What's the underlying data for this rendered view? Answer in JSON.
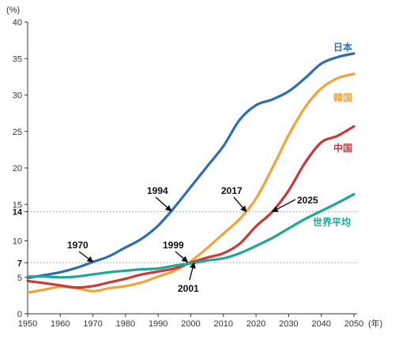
{
  "chart_data": {
    "type": "line",
    "y_unit_label": "(%)",
    "x_unit_label": "(年)",
    "xlim": [
      1950,
      2050
    ],
    "ylim": [
      0,
      40
    ],
    "x_ticks": [
      1950,
      1960,
      1970,
      1980,
      1990,
      2000,
      2010,
      2020,
      2030,
      2040,
      2050
    ],
    "y_ticks": [
      0,
      5,
      7,
      10,
      14,
      15,
      20,
      25,
      30,
      35,
      40
    ],
    "y_ticks_bold": [
      7,
      14
    ],
    "reference_lines": [
      7,
      14
    ],
    "grid": false,
    "series": [
      {
        "name": "日本",
        "color": "#2e6db4",
        "x": [
          1950,
          1955,
          1960,
          1965,
          1970,
          1975,
          1980,
          1985,
          1990,
          1995,
          2000,
          2005,
          2010,
          2015,
          2020,
          2025,
          2030,
          2035,
          2040,
          2045,
          2050
        ],
        "values": [
          4.9,
          5.3,
          5.7,
          6.3,
          7.1,
          7.9,
          9.1,
          10.3,
          12.1,
          14.6,
          17.4,
          20.2,
          23.0,
          26.6,
          28.6,
          29.4,
          30.5,
          32.3,
          34.3,
          35.2,
          35.7
        ]
      },
      {
        "name": "韓国",
        "color": "#f0a33a",
        "x": [
          1950,
          1955,
          1960,
          1965,
          1970,
          1975,
          1980,
          1985,
          1990,
          1995,
          2000,
          2005,
          2010,
          2015,
          2020,
          2025,
          2030,
          2035,
          2040,
          2045,
          2050
        ],
        "values": [
          2.9,
          3.3,
          3.7,
          3.5,
          3.1,
          3.5,
          3.8,
          4.3,
          5.1,
          5.9,
          7.2,
          9.0,
          11.0,
          13.0,
          15.8,
          20.0,
          24.5,
          28.3,
          30.9,
          32.3,
          32.9
        ]
      },
      {
        "name": "中国",
        "color": "#c73a3a",
        "x": [
          1950,
          1955,
          1960,
          1965,
          1970,
          1975,
          1980,
          1985,
          1990,
          1995,
          2000,
          2005,
          2010,
          2015,
          2020,
          2025,
          2030,
          2035,
          2040,
          2045,
          2050
        ],
        "values": [
          4.5,
          4.2,
          3.9,
          3.6,
          3.8,
          4.3,
          4.8,
          5.4,
          5.8,
          6.2,
          7.0,
          7.7,
          8.3,
          9.6,
          12.0,
          14.0,
          16.9,
          20.7,
          23.5,
          24.4,
          25.7
        ]
      },
      {
        "name": "世界平均",
        "color": "#1ea799",
        "x": [
          1950,
          1955,
          1960,
          1965,
          1970,
          1975,
          1980,
          1985,
          1990,
          1995,
          2000,
          2005,
          2010,
          2015,
          2020,
          2025,
          2030,
          2035,
          2040,
          2045,
          2050
        ],
        "values": [
          5.1,
          5.1,
          5.0,
          5.1,
          5.4,
          5.7,
          5.9,
          6.1,
          6.2,
          6.6,
          6.9,
          7.3,
          7.6,
          8.3,
          9.3,
          10.4,
          11.7,
          13.0,
          14.1,
          15.2,
          16.4
        ]
      }
    ],
    "annotations": [
      {
        "label": "1970",
        "x": 1970,
        "y": 7.1
      },
      {
        "label": "1994",
        "x": 1994,
        "y": 14.1
      },
      {
        "label": "1999",
        "x": 1999,
        "y": 7.1
      },
      {
        "label": "2001",
        "x": 2001,
        "y": 7.0
      },
      {
        "label": "2017",
        "x": 2017,
        "y": 14.0
      },
      {
        "label": "2025",
        "x": 2025,
        "y": 14.0
      }
    ]
  }
}
